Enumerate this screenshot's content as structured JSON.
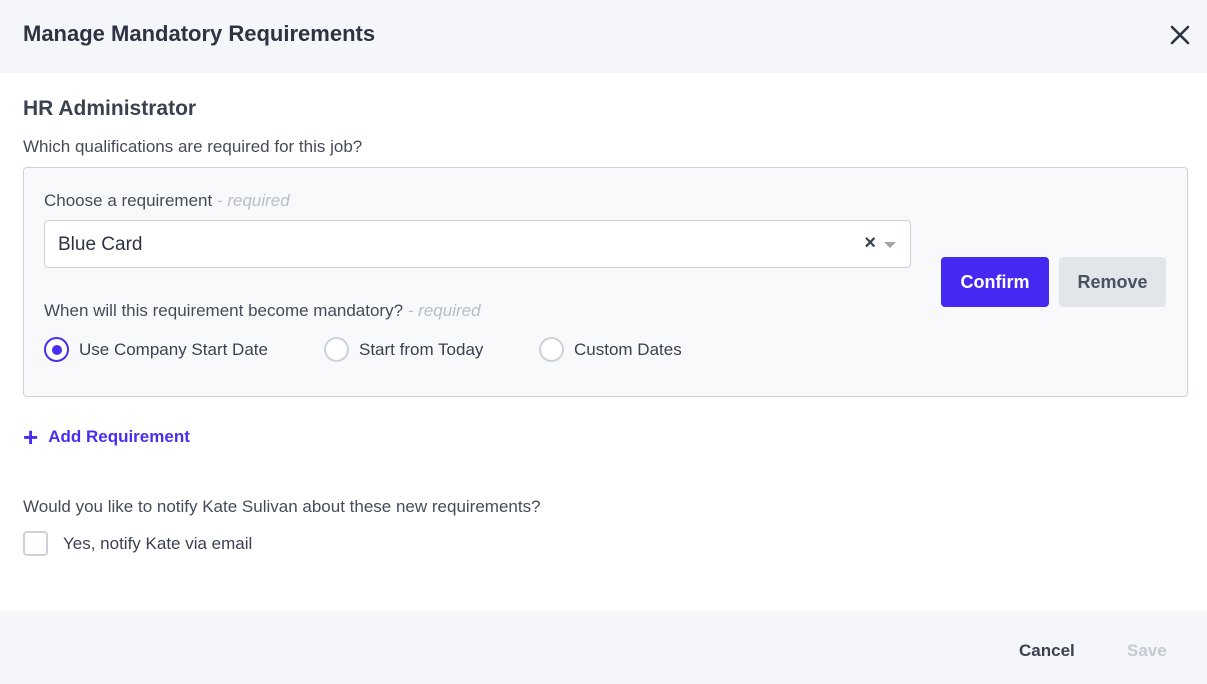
{
  "dialog": {
    "title": "Manage Mandatory Requirements",
    "close_icon": "close-icon"
  },
  "job": {
    "title": "HR Administrator",
    "question": "Which qualifications are required for this job?"
  },
  "requirement": {
    "choose_label": "Choose a requirement",
    "choose_hint": "- required",
    "selected": "Blue Card",
    "clear": "×",
    "mandatory_label": "When will this requirement become mandatory?",
    "mandatory_hint": "- required",
    "options": [
      {
        "label": "Use Company Start Date",
        "checked": true
      },
      {
        "label": "Start from Today",
        "checked": false
      },
      {
        "label": "Custom Dates",
        "checked": false
      }
    ],
    "confirm": "Confirm",
    "remove": "Remove"
  },
  "add_requirement": {
    "icon": "+",
    "label": "Add Requirement"
  },
  "notify": {
    "question": "Would you like to notify Kate Sulivan about these new requirements?",
    "checkbox_label": "Yes, notify Kate via email",
    "checked": false
  },
  "footer": {
    "cancel": "Cancel",
    "save": "Save"
  },
  "colors": {
    "accent": "#4529f2",
    "header_bg": "#f5f6fa"
  }
}
